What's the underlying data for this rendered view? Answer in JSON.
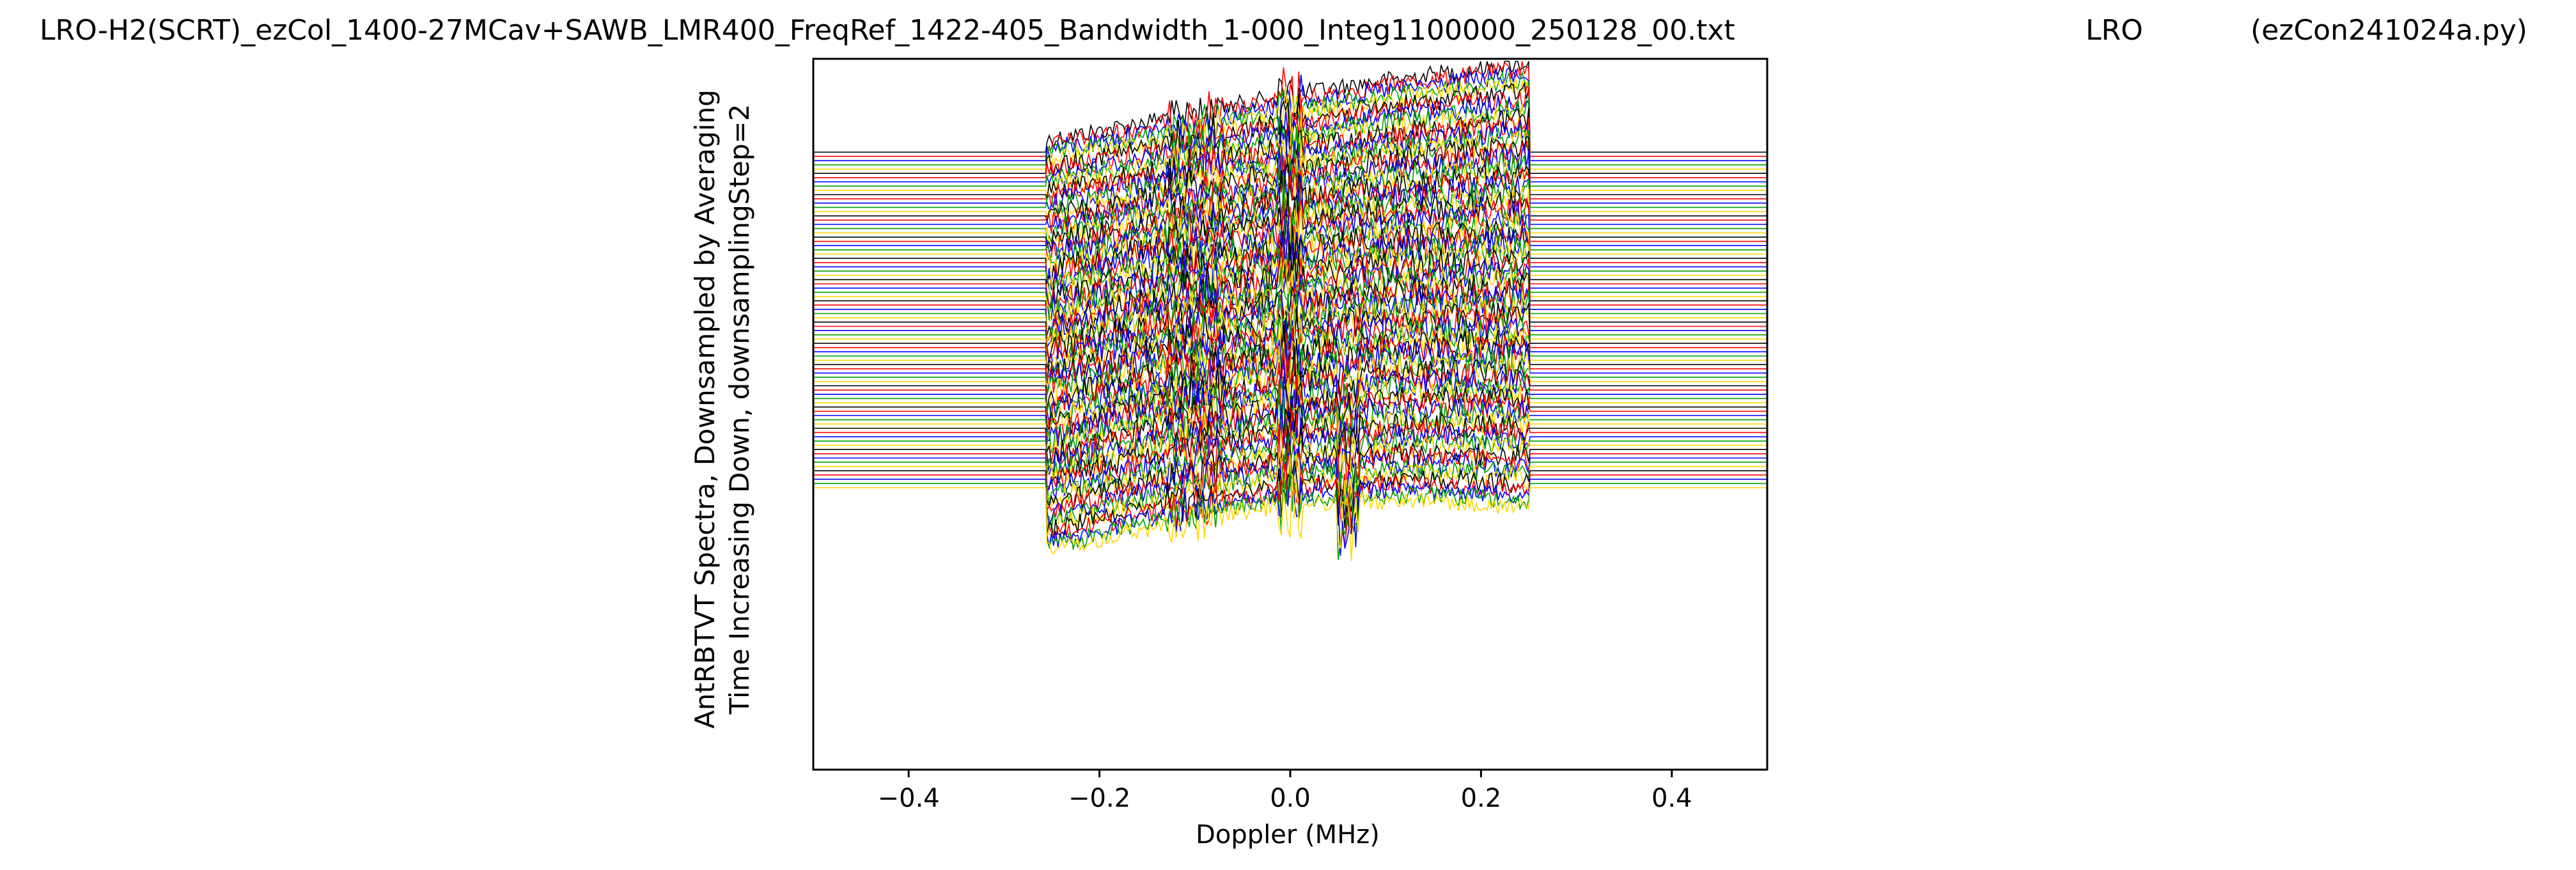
{
  "header": {
    "filename": "LRO-H2(SCRT)_ezCol_1400-27MCav+SAWB_LMR400_FreqRef_1422-405_Bandwidth_1-000_Integ1100000_250128_00.txt",
    "station": "LRO",
    "program": "(ezCon241024a.py)"
  },
  "chart_data": {
    "type": "line",
    "title": "LRO-H2(SCRT)_ezCol_1400-27MCav+SAWB_LMR400_FreqRef_1422-405_Bandwidth_1-000_Integ1100000_250128_00.txt",
    "xlabel": "Doppler (MHz)",
    "ylabel_line1": "AntRBTVT Spectra, Downsampled by Averaging",
    "ylabel_line2": "Time Increasing Down, downsamplingStep=2",
    "xlim": [
      -0.5,
      0.5
    ],
    "xticks": [
      -0.4,
      -0.2,
      0.0,
      0.2,
      0.4
    ],
    "xtick_labels": [
      "−0.4",
      "−0.2",
      "0.0",
      "0.2",
      "0.4"
    ],
    "yticks": [],
    "grid": false,
    "passband": [
      -0.255,
      0.25
    ],
    "series_count": 80,
    "series_colors": [
      "#000000",
      "#ff0000",
      "#0000ff",
      "#00a000",
      "#ffd700"
    ],
    "notes_waterfall": "Stacked spectra: flat outside passband, offset lines spaced evenly, features near 0.0 and 0.06 MHz"
  }
}
